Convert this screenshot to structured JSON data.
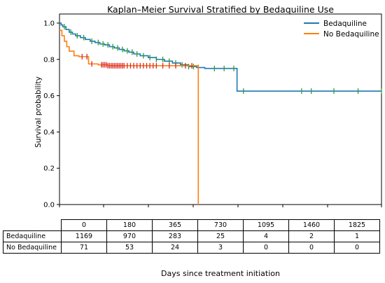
{
  "chart_data": {
    "type": "line",
    "title": "Kaplan–Meier Survival Stratified by Bedaquiline Use",
    "xlabel": "Days since treatment initiation",
    "ylabel": "Survival probability",
    "ylim": [
      0.0,
      1.05
    ],
    "xlim": [
      0,
      1995
    ],
    "yticks": [
      "0.0",
      "0.2",
      "0.4",
      "0.6",
      "0.8",
      "1.0"
    ],
    "ytick_values": [
      0.0,
      0.2,
      0.4,
      0.6,
      0.8,
      1.0
    ],
    "legend": {
      "placement": "top-right"
    },
    "grid": false,
    "series": [
      {
        "name": "Bedaquiline",
        "color": "#1f77b4",
        "censor_color": "#2ca02c",
        "x": [
          0,
          10,
          20,
          40,
          60,
          80,
          100,
          130,
          160,
          190,
          220,
          250,
          280,
          310,
          340,
          370,
          400,
          430,
          460,
          500,
          550,
          600,
          650,
          700,
          750,
          800,
          850,
          900,
          1100,
          1995
        ],
        "y": [
          1.0,
          0.99,
          0.98,
          0.965,
          0.95,
          0.94,
          0.93,
          0.92,
          0.91,
          0.9,
          0.893,
          0.885,
          0.88,
          0.87,
          0.863,
          0.855,
          0.847,
          0.84,
          0.83,
          0.82,
          0.81,
          0.8,
          0.79,
          0.78,
          0.77,
          0.76,
          0.755,
          0.75,
          0.625,
          0.625
        ],
        "censor_marks": [
          30,
          70,
          110,
          150,
          200,
          240,
          270,
          300,
          330,
          360,
          390,
          420,
          450,
          480,
          520,
          560,
          600,
          640,
          680,
          720,
          760,
          800,
          830,
          860,
          960,
          1020,
          1080,
          1140,
          1500,
          1560,
          1700,
          1850,
          1995
        ]
      },
      {
        "name": "No Bedaquiline",
        "color": "#ff7f0e",
        "censor_color": "#d62728",
        "x": [
          0,
          15,
          30,
          45,
          60,
          90,
          120,
          180,
          240,
          300,
          700,
          860,
          860
        ],
        "y": [
          0.96,
          0.93,
          0.9,
          0.87,
          0.845,
          0.82,
          0.815,
          0.775,
          0.77,
          0.765,
          0.765,
          0.765,
          0.0
        ],
        "censor_marks": [
          140,
          170,
          200,
          260,
          270,
          280,
          290,
          300,
          310,
          320,
          330,
          340,
          350,
          360,
          370,
          380,
          390,
          400,
          420,
          440,
          460,
          480,
          500,
          520,
          540,
          560,
          580,
          600,
          640,
          680,
          720,
          780,
          820
        ]
      }
    ],
    "risk_table": {
      "times": [
        "0",
        "180",
        "365",
        "730",
        "1095",
        "1460",
        "1825"
      ],
      "rows": [
        {
          "label": "Bedaquiline",
          "counts": [
            "1169",
            "970",
            "283",
            "25",
            "4",
            "2",
            "1"
          ]
        },
        {
          "label": "No Bedaquiline",
          "counts": [
            "71",
            "53",
            "24",
            "3",
            "0",
            "0",
            "0"
          ]
        }
      ]
    }
  }
}
